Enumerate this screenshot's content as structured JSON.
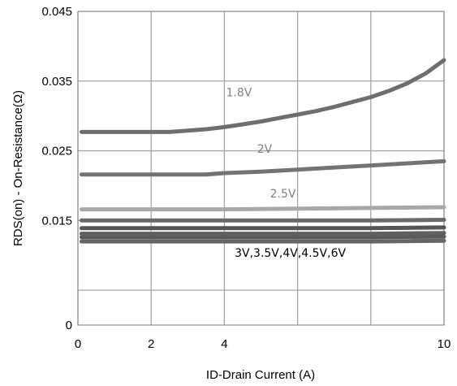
{
  "chart_data": {
    "type": "line",
    "xlabel": "ID-Drain Current (A)",
    "ylabel": "RDS(on) - On-Resistance(Ω)",
    "xlim": [
      0,
      10
    ],
    "ylim": [
      0,
      0.045
    ],
    "xticks": [
      {
        "value": 0,
        "label": "0"
      },
      {
        "value": 2,
        "label": "2"
      },
      {
        "value": 4,
        "label": "4"
      },
      {
        "value": 10,
        "label": "10"
      }
    ],
    "xgrid": [
      0,
      2,
      4,
      6,
      8,
      10
    ],
    "yticks": [
      {
        "value": 0,
        "label": "0"
      },
      {
        "value": 0.015,
        "label": "0.015"
      },
      {
        "value": 0.025,
        "label": "0.025"
      },
      {
        "value": 0.035,
        "label": "0.035"
      },
      {
        "value": 0.045,
        "label": "0.045"
      }
    ],
    "ygrid": [
      0.005,
      0.015,
      0.025,
      0.035,
      0.045
    ],
    "grid": true,
    "legend": "none",
    "series": [
      {
        "name": "1.8V",
        "color": "#6e6e6e",
        "x": [
          0.1,
          1,
          2,
          2.5,
          3,
          3.5,
          4,
          4.5,
          5,
          5.5,
          6,
          6.5,
          7,
          7.5,
          8,
          8.5,
          9,
          9.5,
          10
        ],
        "y": [
          0.0277,
          0.0277,
          0.0277,
          0.0277,
          0.0279,
          0.0281,
          0.0284,
          0.0288,
          0.0292,
          0.0297,
          0.0302,
          0.0307,
          0.0313,
          0.032,
          0.0327,
          0.0336,
          0.0347,
          0.0361,
          0.038
        ]
      },
      {
        "name": "2V",
        "color": "#737373",
        "x": [
          0.1,
          1,
          2,
          3,
          3.5,
          4,
          5,
          6,
          7,
          8,
          9,
          10
        ],
        "y": [
          0.0216,
          0.0216,
          0.0216,
          0.0216,
          0.0216,
          0.0218,
          0.022,
          0.0223,
          0.0226,
          0.0229,
          0.0232,
          0.0235
        ]
      },
      {
        "name": "2.5V",
        "color": "#a8a8a8",
        "x": [
          0.1,
          2,
          4,
          6,
          8,
          10
        ],
        "y": [
          0.0166,
          0.0166,
          0.0166,
          0.0167,
          0.0168,
          0.0169
        ]
      },
      {
        "name": "3V",
        "color": "#6a6a6a",
        "x": [
          0.1,
          2,
          4,
          6,
          8,
          10
        ],
        "y": [
          0.015,
          0.015,
          0.015,
          0.015,
          0.015,
          0.0151
        ]
      },
      {
        "name": "3.5V",
        "color": "#555555",
        "x": [
          0.1,
          2,
          4,
          6,
          8,
          10
        ],
        "y": [
          0.0139,
          0.0139,
          0.0139,
          0.0139,
          0.0139,
          0.014
        ]
      },
      {
        "name": "4V",
        "color": "#606060",
        "x": [
          0.1,
          2,
          4,
          6,
          8,
          10
        ],
        "y": [
          0.0131,
          0.0131,
          0.0131,
          0.0131,
          0.0131,
          0.0132
        ]
      },
      {
        "name": "4.5V",
        "color": "#5a5a5a",
        "x": [
          0.1,
          2,
          4,
          6,
          8,
          10
        ],
        "y": [
          0.0126,
          0.0126,
          0.0126,
          0.0126,
          0.0126,
          0.0127
        ]
      },
      {
        "name": "6V",
        "color": "#656565",
        "x": [
          0.1,
          2,
          4,
          6,
          8,
          10
        ],
        "y": [
          0.012,
          0.012,
          0.012,
          0.012,
          0.012,
          0.0121
        ]
      }
    ],
    "annotations": [
      {
        "text": "1.8V",
        "x": 4.4,
        "y": 0.0328,
        "color": "#808080"
      },
      {
        "text": "2V",
        "x": 5.1,
        "y": 0.0247,
        "color": "#808080"
      },
      {
        "text": "2.5V",
        "x": 5.6,
        "y": 0.0183,
        "color": "#808080"
      },
      {
        "text": "3V,3.5V,4V,4.5V,6V",
        "x": 5.8,
        "y": 0.0098,
        "color": "#000000"
      }
    ]
  }
}
